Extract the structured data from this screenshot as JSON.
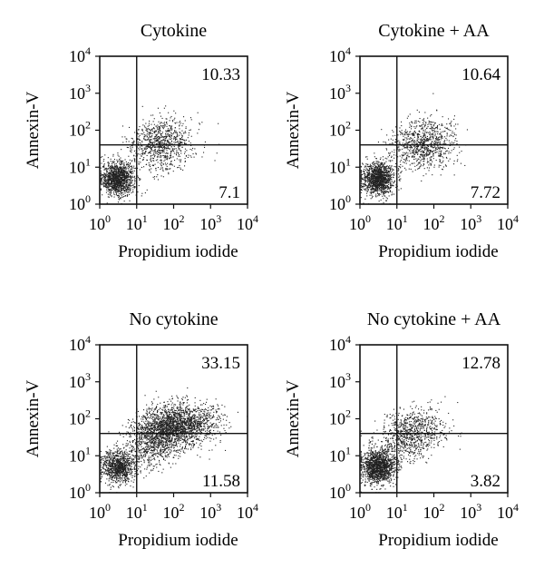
{
  "chart_data": [
    {
      "type": "scatter",
      "title": "Cytokine",
      "xlabel": "Propidium iodide",
      "ylabel": "Annexin-V",
      "xscale": "log",
      "yscale": "log",
      "xlim": [
        1,
        10000
      ],
      "ylim": [
        1,
        10000
      ],
      "x_ticks": [
        "10^0",
        "10^1",
        "10^2",
        "10^3",
        "10^4"
      ],
      "y_ticks": [
        "10^0",
        "10^1",
        "10^2",
        "10^3",
        "10^4"
      ],
      "gates": {
        "x": 10,
        "y": 40
      },
      "quadrant_labels": {
        "upper_right": "10.33",
        "lower_right": "7.1"
      },
      "populations": [
        {
          "name": "",
          "center": [
            3,
            5
          ],
          "count": 1300
        },
        {
          "name": "",
          "center": [
            40,
            55
          ],
          "count": 650
        },
        {
          "name": "",
          "center": [
            60,
            25
          ],
          "count": 250
        }
      ]
    },
    {
      "type": "scatter",
      "title": "Cytokine + AA",
      "xlabel": "Propidium iodide",
      "ylabel": "Annexin-V",
      "xscale": "log",
      "yscale": "log",
      "xlim": [
        1,
        10000
      ],
      "ylim": [
        1,
        10000
      ],
      "x_ticks": [
        "10^0",
        "10^1",
        "10^2",
        "10^3",
        "10^4"
      ],
      "y_ticks": [
        "10^0",
        "10^1",
        "10^2",
        "10^3",
        "10^4"
      ],
      "gates": {
        "x": 10,
        "y": 40
      },
      "quadrant_labels": {
        "upper_right": "10.64",
        "lower_right": "7.72"
      },
      "populations": [
        {
          "name": "",
          "center": [
            3,
            5
          ],
          "count": 1300
        },
        {
          "name": "",
          "center": [
            45,
            55
          ],
          "count": 650
        },
        {
          "name": "",
          "center": [
            60,
            25
          ],
          "count": 260
        }
      ]
    },
    {
      "type": "scatter",
      "title": "No cytokine",
      "xlabel": "Propidium iodide",
      "ylabel": "Annexin-V",
      "xscale": "log",
      "yscale": "log",
      "xlim": [
        1,
        10000
      ],
      "ylim": [
        1,
        10000
      ],
      "x_ticks": [
        "10^0",
        "10^1",
        "10^2",
        "10^3",
        "10^4"
      ],
      "y_ticks": [
        "10^0",
        "10^1",
        "10^2",
        "10^3",
        "10^4"
      ],
      "gates": {
        "x": 10,
        "y": 40
      },
      "quadrant_labels": {
        "upper_right": "33.15",
        "lower_right": "11.58"
      },
      "populations": [
        {
          "name": "",
          "center": [
            3,
            5
          ],
          "count": 900
        },
        {
          "name": "",
          "center": [
            60,
            60
          ],
          "count": 1500
        },
        {
          "name": "",
          "center": [
            300,
            70
          ],
          "count": 800
        },
        {
          "name": "",
          "center": [
            20,
            15
          ],
          "count": 450
        }
      ]
    },
    {
      "type": "scatter",
      "title": "No cytokine + AA",
      "xlabel": "Propidium iodide",
      "ylabel": "Annexin-V",
      "xscale": "log",
      "yscale": "log",
      "xlim": [
        1,
        10000
      ],
      "ylim": [
        1,
        10000
      ],
      "x_ticks": [
        "10^0",
        "10^1",
        "10^2",
        "10^3",
        "10^4"
      ],
      "y_ticks": [
        "10^0",
        "10^1",
        "10^2",
        "10^3",
        "10^4"
      ],
      "gates": {
        "x": 10,
        "y": 40
      },
      "quadrant_labels": {
        "upper_right": "12.78",
        "lower_right": "3.82"
      },
      "populations": [
        {
          "name": "",
          "center": [
            3,
            5
          ],
          "count": 1400
        },
        {
          "name": "",
          "center": [
            30,
            50
          ],
          "count": 650
        },
        {
          "name": "",
          "center": [
            12,
            18
          ],
          "count": 300
        }
      ]
    }
  ]
}
